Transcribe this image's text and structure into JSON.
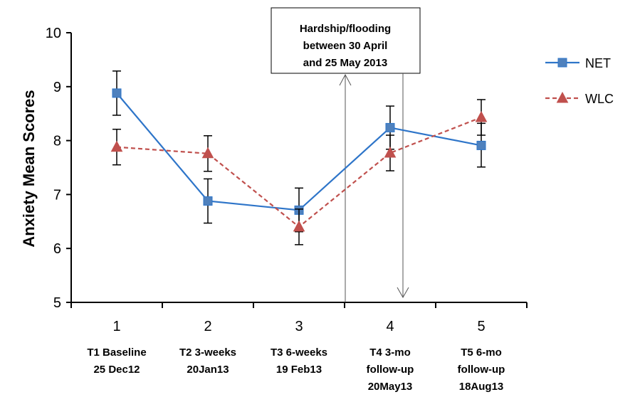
{
  "chart_data": {
    "type": "line",
    "title": "",
    "xlabel": "",
    "ylabel": "Anxiety Mean Scores",
    "x": [
      1,
      2,
      3,
      4,
      5
    ],
    "x_tick_labels": [
      "1",
      "2",
      "3",
      "4",
      "5"
    ],
    "category_labels": [
      [
        "T1 Baseline",
        "25 Dec12"
      ],
      [
        "T2 3-weeks",
        "20Jan13"
      ],
      [
        "T3 6-weeks",
        "19 Feb13"
      ],
      [
        "T4 3-mo",
        "follow-up",
        "20May13"
      ],
      [
        "T5 6-mo",
        "follow-up",
        "18Aug13"
      ]
    ],
    "ylim": [
      5,
      10
    ],
    "y_ticks": [
      5,
      6,
      7,
      8,
      9,
      10
    ],
    "grid": false,
    "legend_position": "right",
    "series": [
      {
        "name": "NET",
        "values": [
          8.88,
          6.88,
          6.71,
          8.24,
          7.91
        ],
        "error_low": [
          8.47,
          6.47,
          6.31,
          7.84,
          7.51
        ],
        "error_high": [
          9.29,
          7.29,
          7.12,
          8.64,
          8.32
        ],
        "color": "#2e75c9",
        "marker": "square",
        "line_style": "solid"
      },
      {
        "name": "WLC",
        "values": [
          7.88,
          7.76,
          6.4,
          7.77,
          8.43
        ],
        "error_low": [
          7.55,
          7.43,
          6.07,
          7.44,
          8.1
        ],
        "error_high": [
          8.21,
          8.09,
          6.73,
          8.1,
          8.76
        ],
        "color": "#c0504d",
        "marker": "triangle",
        "line_style": "dashed"
      }
    ],
    "annotation": {
      "lines": [
        "Hardship/flooding",
        "between 30 April",
        "and 25 May 2013"
      ]
    }
  }
}
